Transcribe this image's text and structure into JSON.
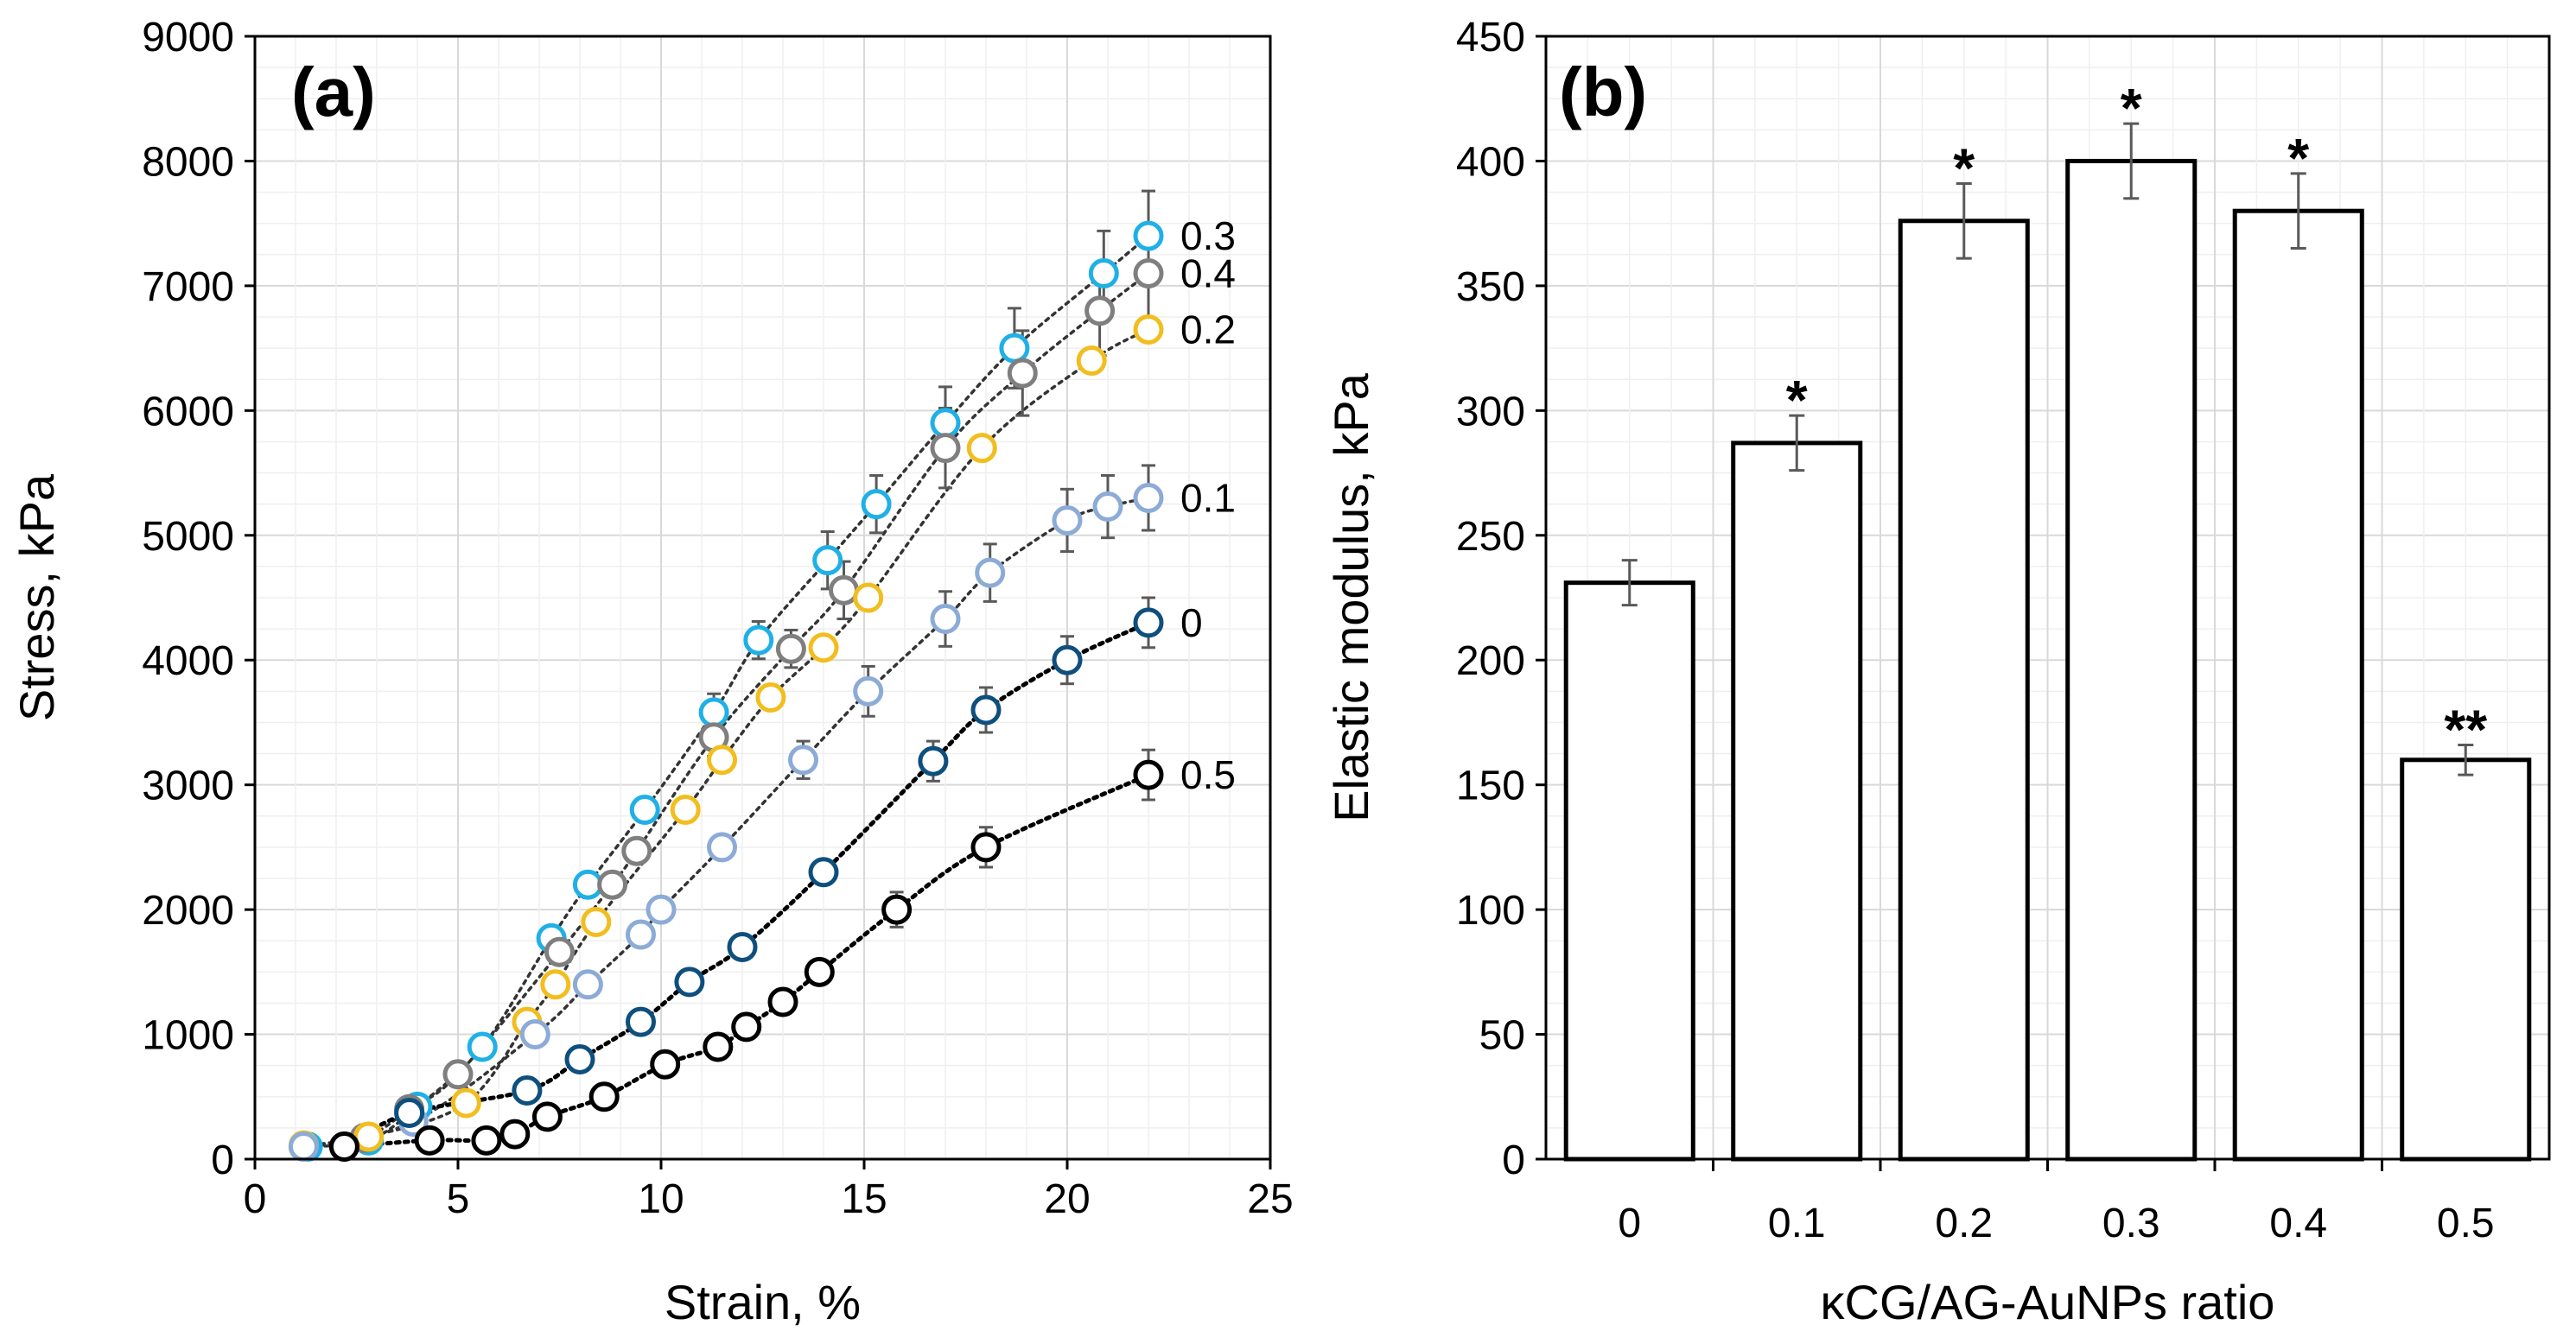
{
  "chart_data": [
    {
      "panel_label": "(a)",
      "type": "scatter",
      "xlabel": "Strain, %",
      "ylabel": "Stress, kPa",
      "xlim": [
        0,
        25
      ],
      "ylim": [
        0,
        9000
      ],
      "xticks": [
        "0",
        "5",
        "10",
        "15",
        "20",
        "25"
      ],
      "yticks": [
        "0",
        "1000",
        "2000",
        "3000",
        "4000",
        "5000",
        "6000",
        "7000",
        "8000",
        "9000"
      ],
      "grid": true,
      "series": [
        {
          "name": "0.3",
          "color": "#1fb0e6",
          "x": [
            1.3,
            2.8,
            4.0,
            5.6,
            7.3,
            8.2,
            9.6,
            11.3,
            12.4,
            14.1,
            15.3,
            17.0,
            18.7,
            20.9,
            22.0
          ],
          "y": [
            100,
            150,
            420,
            900,
            1770,
            2200,
            2800,
            3580,
            4160,
            4800,
            5250,
            5900,
            6500,
            7100,
            7400
          ],
          "err": [
            0,
            0,
            0,
            0,
            0,
            0,
            0,
            150,
            150,
            230,
            230,
            290,
            320,
            340,
            360
          ]
        },
        {
          "name": "0.4",
          "color": "#7f7f7f",
          "x": [
            1.2,
            2.7,
            3.8,
            5.0,
            7.5,
            8.8,
            9.4,
            11.3,
            13.2,
            14.5,
            17.0,
            18.9,
            20.8,
            22.0
          ],
          "y": [
            100,
            170,
            400,
            680,
            1660,
            2200,
            2470,
            3380,
            4090,
            4560,
            5700,
            6300,
            6800,
            7100
          ],
          "err": [
            0,
            0,
            0,
            0,
            0,
            0,
            0,
            150,
            150,
            230,
            320,
            340,
            360,
            380
          ]
        },
        {
          "name": "0.2",
          "color": "#f2be1f",
          "x": [
            1.2,
            2.8,
            5.2,
            6.7,
            7.4,
            8.4,
            10.6,
            11.5,
            12.7,
            14.0,
            15.1,
            17.9,
            20.6,
            22.0
          ],
          "y": [
            110,
            180,
            450,
            1100,
            1400,
            1900,
            2800,
            3200,
            3700,
            4100,
            4500,
            5700,
            6400,
            6650
          ]
        },
        {
          "name": "0.1",
          "color": "#8cabd7",
          "x": [
            1.2,
            3.9,
            6.9,
            8.2,
            9.5,
            10.0,
            11.5,
            13.5,
            15.1,
            17.0,
            18.1,
            20.0,
            21.0,
            22.0
          ],
          "y": [
            100,
            300,
            1000,
            1400,
            1800,
            2000,
            2500,
            3200,
            3750,
            4330,
            4700,
            5120,
            5230,
            5300
          ],
          "err": [
            0,
            0,
            0,
            0,
            0,
            0,
            0,
            150,
            200,
            220,
            230,
            250,
            250,
            260
          ]
        },
        {
          "name": "0",
          "color": "#0e4f7d",
          "x": [
            2.2,
            3.8,
            6.7,
            8.0,
            9.5,
            10.7,
            12.0,
            14.0,
            16.7,
            18.0,
            20.0,
            22.0
          ],
          "y": [
            100,
            370,
            550,
            800,
            1100,
            1420,
            1700,
            2300,
            3190,
            3600,
            4000,
            4300
          ],
          "err": [
            0,
            0,
            0,
            0,
            0,
            0,
            0,
            0,
            160,
            180,
            190,
            200
          ]
        },
        {
          "name": "0.5",
          "color": "#000000",
          "x": [
            2.2,
            4.3,
            5.7,
            6.4,
            7.2,
            8.6,
            10.1,
            11.4,
            12.1,
            13.0,
            13.9,
            15.8,
            18.0,
            22.0
          ],
          "y": [
            100,
            150,
            150,
            200,
            340,
            500,
            760,
            900,
            1060,
            1260,
            1500,
            2000,
            2500,
            3080
          ],
          "err": [
            0,
            0,
            0,
            0,
            0,
            0,
            0,
            0,
            0,
            0,
            0,
            140,
            160,
            200
          ]
        }
      ]
    },
    {
      "panel_label": "(b)",
      "type": "bar",
      "xlabel": "κCG/AG-AuNPs ratio",
      "ylabel": "Elastic modulus, kPa",
      "ylim": [
        0,
        450
      ],
      "yticks": [
        "0",
        "50",
        "100",
        "150",
        "200",
        "250",
        "300",
        "350",
        "400",
        "450"
      ],
      "grid": true,
      "categories": [
        "0",
        "0.1",
        "0.2",
        "0.3",
        "0.4",
        "0.5"
      ],
      "values": [
        231,
        287,
        376,
        400,
        380,
        160
      ],
      "errors": [
        9,
        11,
        15,
        15,
        15,
        6
      ],
      "annotations": [
        "",
        "*",
        "*",
        "*",
        "*",
        "**"
      ]
    }
  ]
}
